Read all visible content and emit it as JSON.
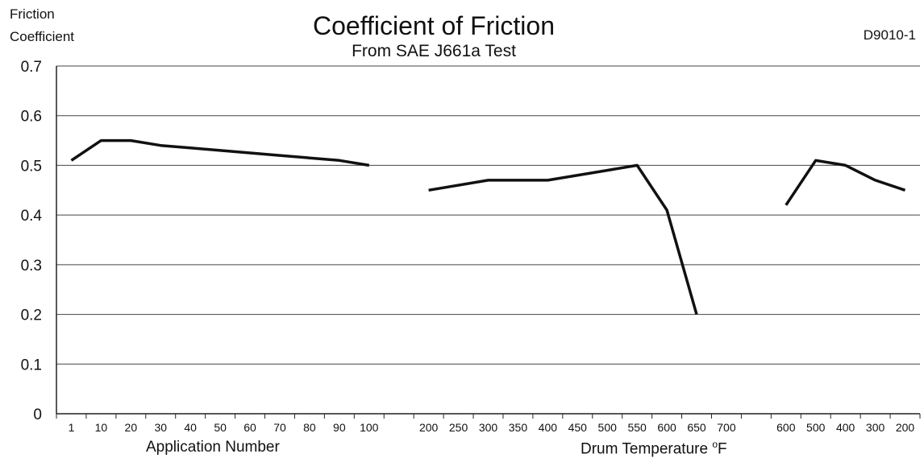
{
  "chart_data": {
    "type": "line",
    "title": "Coefficient of Friction",
    "subtitle": "From SAE J661a Test",
    "code": "D9010-1",
    "ylabel_line1": "Friction",
    "ylabel_line2": "Coefficient",
    "xlabel_left": "Application Number",
    "xlabel_right": "Drum Temperature",
    "xlabel_right_unit": "F",
    "xlabel_right_unit_prefix": "o",
    "ylim": [
      0,
      0.7
    ],
    "yticks": [
      "0",
      "0.1",
      "0.2",
      "0.3",
      "0.4",
      "0.5",
      "0.6",
      "0.7"
    ],
    "grid": true,
    "categories": [
      "1",
      "10",
      "20",
      "30",
      "40",
      "50",
      "60",
      "70",
      "80",
      "90",
      "100",
      "",
      "200",
      "250",
      "300",
      "350",
      "400",
      "450",
      "500",
      "550",
      "600",
      "650",
      "700",
      "",
      "600",
      "500",
      "400",
      "300",
      "200"
    ],
    "series": [
      {
        "segment": "application",
        "color": "#111111",
        "points": [
          [
            0,
            0.51
          ],
          [
            1,
            0.55
          ],
          [
            2,
            0.55
          ],
          [
            3,
            0.54
          ],
          [
            4,
            0.535
          ],
          [
            5,
            0.53
          ],
          [
            6,
            0.525
          ],
          [
            7,
            0.52
          ],
          [
            8,
            0.515
          ],
          [
            9,
            0.51
          ],
          [
            10,
            0.5
          ]
        ]
      },
      {
        "segment": "heating",
        "color": "#111111",
        "points": [
          [
            12,
            0.45
          ],
          [
            14,
            0.47
          ],
          [
            16,
            0.47
          ],
          [
            18,
            0.49
          ],
          [
            19,
            0.5
          ],
          [
            20,
            0.41
          ],
          [
            21,
            0.2
          ]
        ]
      },
      {
        "segment": "cooling",
        "color": "#111111",
        "points": [
          [
            24,
            0.42
          ],
          [
            25,
            0.51
          ],
          [
            26,
            0.5
          ],
          [
            27,
            0.47
          ],
          [
            28,
            0.45
          ]
        ]
      }
    ]
  }
}
